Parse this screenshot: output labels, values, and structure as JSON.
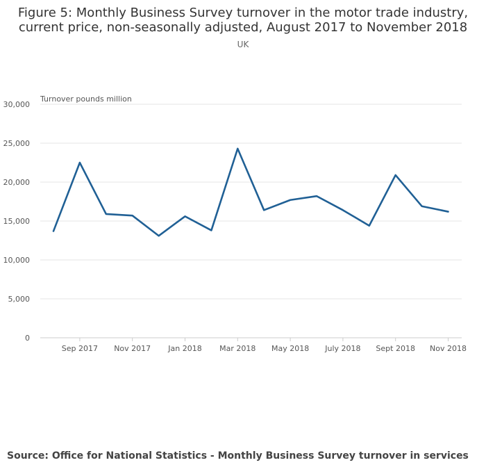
{
  "chart_data": {
    "type": "line",
    "title_line1": "Figure 5: Monthly Business Survey turnover in the motor trade industry,",
    "title_line2": "current price, non-seasonally adjusted, August 2017 to November 2018",
    "subtitle": "UK",
    "ylabel": "Turnover pounds million",
    "ylim": [
      0,
      30000
    ],
    "yticks": [
      0,
      5000,
      10000,
      15000,
      20000,
      25000,
      30000
    ],
    "ytick_labels": [
      "0",
      "5,000",
      "10,000",
      "15,000",
      "20,000",
      "25,000",
      "30,000"
    ],
    "x": [
      "Aug 2017",
      "Sep 2017",
      "Oct 2017",
      "Nov 2017",
      "Dec 2017",
      "Jan 2018",
      "Feb 2018",
      "Mar 2018",
      "Apr 2018",
      "May 2018",
      "Jun 2018",
      "Jul 2018",
      "Aug 2018",
      "Sep 2018",
      "Oct 2018",
      "Nov 2018"
    ],
    "xtick_labels": [
      {
        "index": 1,
        "label": "Sep 2017"
      },
      {
        "index": 3,
        "label": "Nov 2017"
      },
      {
        "index": 5,
        "label": "Jan 2018"
      },
      {
        "index": 7,
        "label": "Mar 2018"
      },
      {
        "index": 9,
        "label": "May 2018"
      },
      {
        "index": 11,
        "label": "July 2018"
      },
      {
        "index": 13,
        "label": "Sept 2018"
      },
      {
        "index": 15,
        "label": "Nov 2018"
      }
    ],
    "series": [
      {
        "values": [
          13700,
          22500,
          15900,
          15700,
          13100,
          15600,
          13800,
          24300,
          16400,
          17700,
          18200,
          16400,
          14400,
          20900,
          16900,
          16200
        ],
        "color": "#206095"
      }
    ],
    "grid": true
  },
  "source": "Source: Office for National Statistics - Monthly Business Survey turnover in services"
}
